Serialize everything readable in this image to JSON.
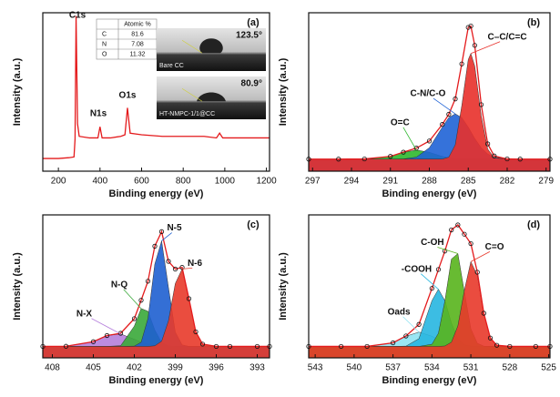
{
  "chart_data": [
    {
      "type": "line",
      "panel": "(a)",
      "xlabel": "Binding energy (eV)",
      "ylabel": "Intensity (a.u.)",
      "xlim": [
        125,
        1215
      ],
      "ylim": [
        0,
        100
      ],
      "xticks": [
        200,
        400,
        600,
        800,
        1000,
        1200
      ],
      "x": [
        125,
        200,
        250,
        275,
        280,
        285,
        292,
        300,
        350,
        390,
        400,
        410,
        450,
        500,
        520,
        532,
        545,
        600,
        700,
        800,
        900,
        960,
        975,
        990,
        1100,
        1215
      ],
      "series": [
        {
          "color": "#e41a1c",
          "values": [
            8,
            8,
            8.5,
            9,
            20,
            98,
            30,
            22,
            21,
            21,
            28,
            21,
            21,
            22,
            23,
            40,
            24,
            23,
            22,
            22,
            22,
            21,
            24,
            21,
            21,
            21
          ]
        }
      ],
      "peak_labels": [
        "C1s",
        "N1s",
        "O1s"
      ],
      "inset_table": {
        "header": "Atomic %",
        "rows": [
          [
            "C",
            81.6
          ],
          [
            "N",
            7.08
          ],
          [
            "O",
            11.32
          ]
        ]
      },
      "contact_angles": [
        {
          "label": "Bare CC",
          "angle": "123.5°"
        },
        {
          "label": "HT-NMPC-1/1@CC",
          "angle": "80.9°"
        }
      ]
    },
    {
      "type": "area",
      "panel": "(b)",
      "xlabel": "Binding energy (eV)",
      "ylabel": "Intensity (a.u.)",
      "xlim": [
        297.3,
        278.7
      ],
      "ylim": [
        0,
        105
      ],
      "xticks": [
        297,
        294,
        291,
        288,
        285,
        282,
        279
      ],
      "x": [
        297.3,
        295,
        293,
        291,
        290,
        289,
        288,
        287,
        286.5,
        286,
        285.5,
        285,
        284.8,
        284.5,
        284,
        283.5,
        283,
        282,
        281,
        278.7
      ],
      "series": [
        {
          "name": "O=C",
          "color": "#2eb82e",
          "values": [
            8,
            8,
            8.1,
            9.8,
            12.5,
            14,
            12.5,
            9.8,
            8.9,
            8.4,
            8.2,
            8.1,
            8,
            8,
            8,
            8,
            8,
            8,
            8,
            8
          ]
        },
        {
          "name": "C-N/C-O",
          "color": "#1f63d6",
          "values": [
            8,
            8,
            8,
            8,
            8.1,
            9.3,
            15.5,
            29.2,
            35.5,
            38,
            35.5,
            29.2,
            26.2,
            21.7,
            15.5,
            11.4,
            9.3,
            8.1,
            8,
            8
          ]
        },
        {
          "name": "C–C/C=C",
          "color": "#e8302a",
          "values": [
            8,
            8,
            8,
            8,
            8,
            8,
            8,
            8,
            9.3,
            17.5,
            43.4,
            74,
            78,
            69.7,
            36.6,
            14.7,
            8.8,
            8,
            8,
            8
          ]
        }
      ],
      "fit": {
        "color": "#e41a1c",
        "values": [
          8,
          8,
          8.1,
          9.8,
          12.6,
          15.3,
          20,
          31,
          37.7,
          47.9,
          71.1,
          95.3,
          96.2,
          83.4,
          44.1,
          18.1,
          10.1,
          8.1,
          8,
          8
        ]
      }
    },
    {
      "type": "area",
      "panel": "(c)",
      "xlabel": "Binding energy (eV)",
      "ylabel": "Intensity (a.u.)",
      "xlim": [
        408.7,
        392.1
      ],
      "ylim": [
        0,
        100
      ],
      "xticks": [
        408,
        405,
        402,
        399,
        396,
        393
      ],
      "x": [
        408.7,
        407,
        405,
        404,
        403,
        402,
        401.5,
        401,
        400.5,
        400,
        399.5,
        399,
        398.5,
        398,
        397.5,
        397,
        396,
        395,
        393,
        392.1
      ],
      "series": [
        {
          "name": "N-X",
          "color": "#b57fdc",
          "values": [
            8,
            8.1,
            11.3,
            15.6,
            16.7,
            13,
            10.9,
            9.4,
            8.6,
            8.2,
            8,
            8,
            8,
            8,
            8,
            8,
            8,
            8,
            8,
            8
          ]
        },
        {
          "name": "N-Q",
          "color": "#3aa83a",
          "values": [
            8,
            8,
            8,
            8,
            8.5,
            22.2,
            34.5,
            32.6,
            19.5,
            10.7,
            8.3,
            8,
            8,
            8,
            8,
            8,
            8,
            8,
            8,
            8
          ]
        },
        {
          "name": "N-5",
          "color": "#1e5fd0",
          "values": [
            8,
            8,
            8,
            8,
            8,
            8.2,
            10.9,
            27.6,
            65.6,
            81.8,
            49.3,
            18.1,
            9.1,
            8,
            8,
            8,
            8,
            8,
            8,
            8
          ]
        },
        {
          "name": "N-6",
          "color": "#e83a2a",
          "values": [
            8,
            8,
            8,
            8,
            8,
            8,
            8,
            8,
            8.4,
            11.6,
            25.9,
            52,
            62.2,
            41.4,
            18.2,
            9.6,
            8,
            8,
            8,
            8
          ]
        }
      ],
      "fit": {
        "color": "#e41a1c",
        "values": [
          8,
          8.1,
          11.3,
          15.6,
          17.2,
          27.4,
          40.3,
          53.6,
          78.1,
          88.3,
          67.5,
          62.1,
          63.3,
          41.4,
          18.2,
          9.6,
          8,
          8,
          8,
          8
        ]
      }
    },
    {
      "type": "area",
      "panel": "(d)",
      "xlabel": "Binding energy (eV)",
      "ylabel": "Intensity (a.u.)",
      "xlim": [
        543.5,
        524.9
      ],
      "ylim": [
        0,
        100
      ],
      "xticks": [
        543,
        540,
        537,
        534,
        531,
        528,
        525
      ],
      "x": [
        543.5,
        541,
        539,
        537,
        536,
        535,
        534,
        533.5,
        533,
        532.5,
        532,
        531.5,
        531,
        530.5,
        530,
        529.5,
        529,
        528,
        526,
        524.9
      ],
      "series": [
        {
          "name": "Oads",
          "color": "#8fe3f2",
          "values": [
            8,
            8,
            8,
            10.5,
            15.1,
            18,
            15.1,
            12.6,
            10.5,
            9.1,
            8.4,
            8.1,
            8,
            8,
            8,
            8,
            8,
            8,
            8,
            8
          ]
        },
        {
          "name": "-COOH",
          "color": "#27b6e0",
          "values": [
            8,
            8,
            8,
            8,
            8.2,
            13.4,
            40,
            48,
            40,
            24.4,
            13.4,
            9.1,
            8.2,
            8,
            8,
            8,
            8,
            8,
            8,
            8
          ]
        },
        {
          "name": "C-OH",
          "color": "#58b41c",
          "values": [
            8,
            8,
            8,
            8,
            8,
            8,
            9.5,
            17.2,
            39.9,
            69.1,
            72.9,
            46.1,
            20.4,
            10.2,
            8.2,
            8,
            8,
            8,
            8,
            8
          ]
        },
        {
          "name": "C=O",
          "color": "#e8382a",
          "values": [
            8,
            8,
            8,
            8,
            8,
            8,
            8,
            8,
            8.3,
            10.9,
            22.3,
            47.2,
            67.3,
            57.7,
            31,
            13.9,
            8.8,
            8,
            8,
            8
          ]
        }
      ],
      "fit": {
        "color": "#e41a1c",
        "values": [
          8,
          8,
          8,
          10.5,
          15.3,
          23.4,
          48.6,
          61.8,
          74.7,
          89.5,
          93,
          86.5,
          79.9,
          59.9,
          31.2,
          13.9,
          8.8,
          8,
          8,
          8
        ]
      }
    }
  ]
}
